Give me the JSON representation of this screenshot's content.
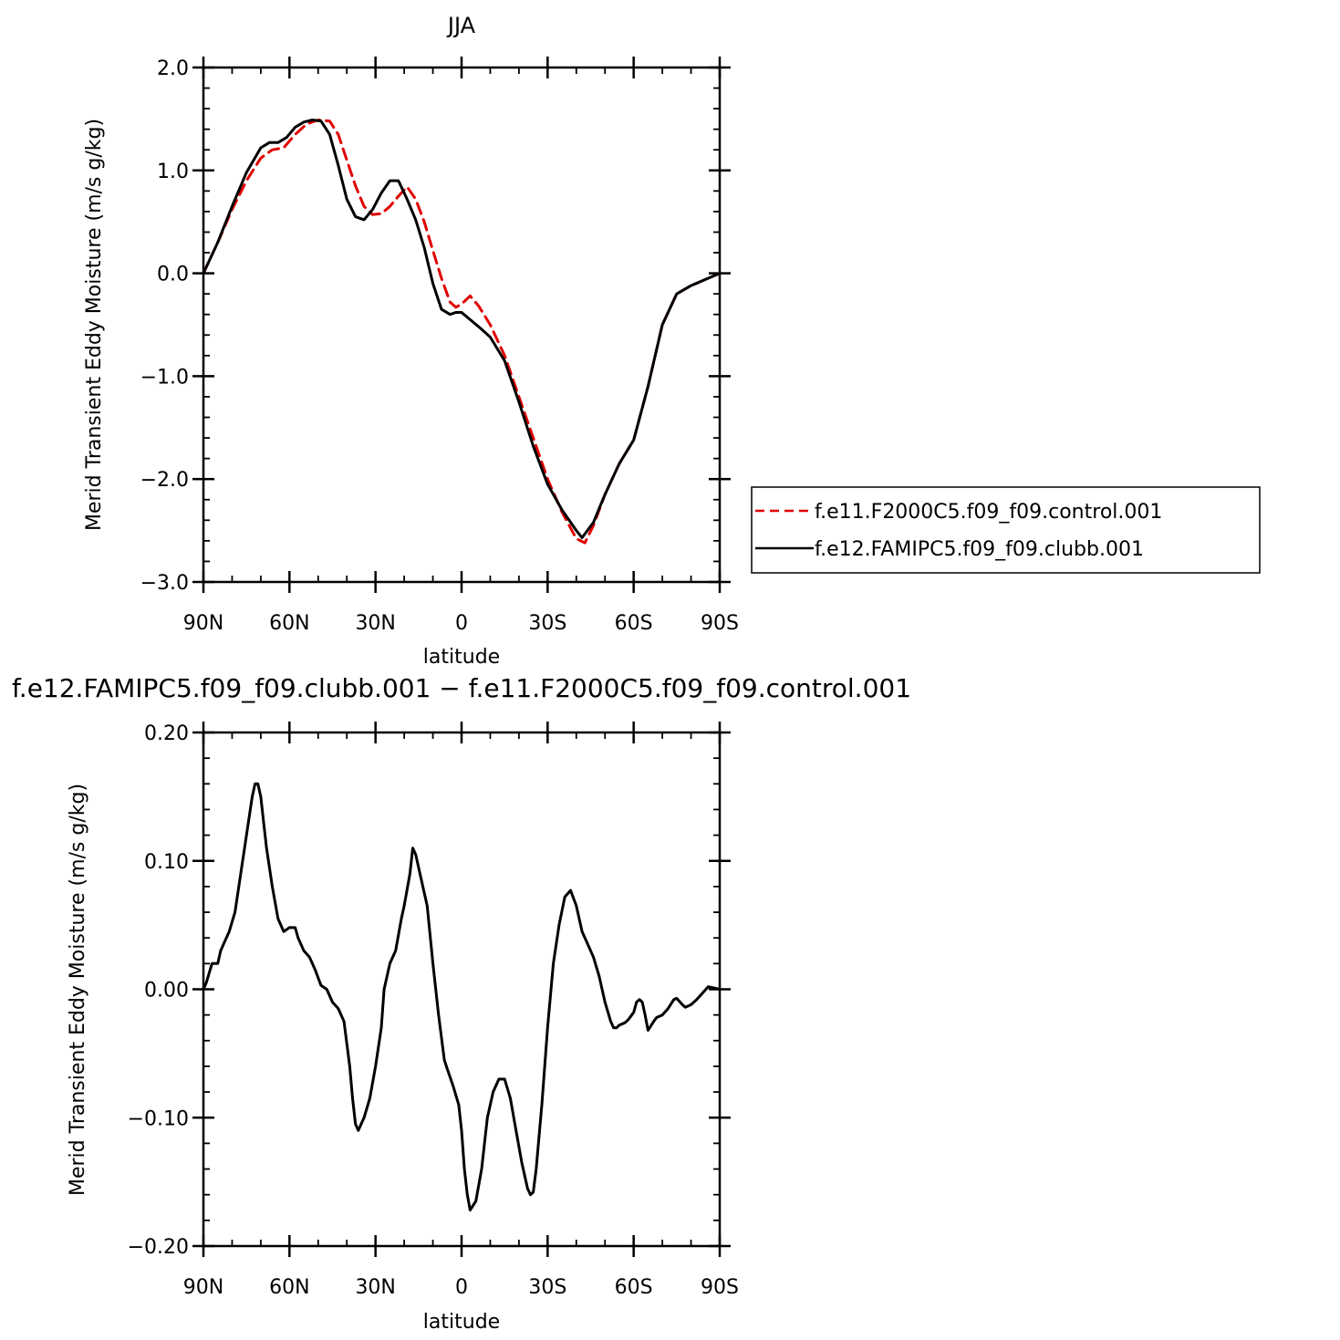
{
  "chart_data": [
    {
      "type": "line",
      "title": "JJA",
      "xlabel": "latitude",
      "ylabel": "Merid Transient Eddy Moisture (m/s g/kg)",
      "xlim": [
        90,
        -90
      ],
      "ylim": [
        -3.0,
        2.0
      ],
      "x_ticks": [
        {
          "value": 90,
          "label": "90N"
        },
        {
          "value": 60,
          "label": "60N"
        },
        {
          "value": 30,
          "label": "30N"
        },
        {
          "value": 0,
          "label": "0"
        },
        {
          "value": -30,
          "label": "30S"
        },
        {
          "value": -60,
          "label": "60S"
        },
        {
          "value": -90,
          "label": "90S"
        }
      ],
      "y_ticks": [
        {
          "value": 2.0,
          "label": "2.0"
        },
        {
          "value": 1.0,
          "label": "1.0"
        },
        {
          "value": 0.0,
          "label": "0.0"
        },
        {
          "value": -1.0,
          "label": "−1.0"
        },
        {
          "value": -2.0,
          "label": "−2.0"
        },
        {
          "value": -3.0,
          "label": "−3.0"
        }
      ],
      "legend_position": "right",
      "series": [
        {
          "name": "f.e11.F2000C5.f09_f09.control.001",
          "color": "#e00000",
          "dash": "dashed",
          "x": [
            90,
            85,
            80,
            75,
            70,
            66,
            62,
            58,
            54,
            50,
            46,
            43,
            40,
            37,
            34,
            31,
            28,
            25,
            22,
            19,
            16,
            13,
            10,
            7,
            4,
            2,
            0,
            -3,
            -6,
            -10,
            -15,
            -20,
            -25,
            -30,
            -35,
            -40,
            -43,
            -46,
            -50,
            -55,
            -60,
            -65,
            -70,
            -75,
            -80,
            -85,
            -90
          ],
          "y": [
            0.0,
            0.3,
            0.62,
            0.9,
            1.12,
            1.2,
            1.22,
            1.35,
            1.45,
            1.49,
            1.48,
            1.35,
            1.1,
            0.85,
            0.65,
            0.57,
            0.58,
            0.65,
            0.75,
            0.84,
            0.72,
            0.5,
            0.22,
            -0.05,
            -0.28,
            -0.33,
            -0.3,
            -0.22,
            -0.32,
            -0.5,
            -0.8,
            -1.2,
            -1.6,
            -2.0,
            -2.32,
            -2.58,
            -2.62,
            -2.45,
            -2.15,
            -1.85,
            -1.62,
            -1.1,
            -0.5,
            -0.2,
            -0.12,
            -0.06,
            0.0
          ]
        },
        {
          "name": "f.e12.FAMIPC5.f09_f09.clubb.001",
          "color": "#000000",
          "dash": "solid",
          "x": [
            90,
            85,
            80,
            75,
            70,
            67,
            64,
            61,
            58,
            55,
            52,
            49,
            46,
            43,
            40,
            37,
            34,
            31,
            28,
            25,
            22,
            19,
            16,
            13,
            10,
            7,
            4,
            2,
            0,
            -3,
            -6,
            -10,
            -15,
            -20,
            -25,
            -30,
            -35,
            -40,
            -42,
            -46,
            -50,
            -55,
            -60,
            -65,
            -70,
            -75,
            -80,
            -85,
            -90
          ],
          "y": [
            0.0,
            0.3,
            0.65,
            0.98,
            1.22,
            1.27,
            1.27,
            1.32,
            1.42,
            1.47,
            1.49,
            1.48,
            1.35,
            1.05,
            0.72,
            0.55,
            0.52,
            0.62,
            0.78,
            0.9,
            0.9,
            0.72,
            0.52,
            0.25,
            -0.1,
            -0.35,
            -0.4,
            -0.38,
            -0.38,
            -0.45,
            -0.52,
            -0.62,
            -0.85,
            -1.25,
            -1.68,
            -2.05,
            -2.3,
            -2.5,
            -2.57,
            -2.42,
            -2.15,
            -1.85,
            -1.62,
            -1.1,
            -0.5,
            -0.2,
            -0.12,
            -0.06,
            0.0
          ]
        }
      ]
    },
    {
      "type": "line",
      "title": "f.e12.FAMIPC5.f09_f09.clubb.001 − f.e11.F2000C5.f09_f09.control.001",
      "xlabel": "latitude",
      "ylabel": "Merid Transient Eddy Moisture (m/s g/kg)",
      "xlim": [
        90,
        -90
      ],
      "ylim": [
        -0.2,
        0.2
      ],
      "x_ticks": [
        {
          "value": 90,
          "label": "90N"
        },
        {
          "value": 60,
          "label": "60N"
        },
        {
          "value": 30,
          "label": "30N"
        },
        {
          "value": 0,
          "label": "0"
        },
        {
          "value": -30,
          "label": "30S"
        },
        {
          "value": -60,
          "label": "60S"
        },
        {
          "value": -90,
          "label": "90S"
        }
      ],
      "y_ticks": [
        {
          "value": 0.2,
          "label": "0.20"
        },
        {
          "value": 0.1,
          "label": "0.10"
        },
        {
          "value": 0.0,
          "label": "0.00"
        },
        {
          "value": -0.1,
          "label": "−0.10"
        },
        {
          "value": -0.2,
          "label": "−0.20"
        }
      ],
      "series": [
        {
          "color": "#000000",
          "dash": "solid",
          "x": [
            90,
            89,
            87,
            86,
            85,
            84,
            83,
            81,
            79,
            77,
            75,
            73,
            72,
            71,
            70,
            69,
            68,
            66,
            64,
            62,
            60,
            58,
            57,
            55,
            53,
            51,
            49,
            47,
            45,
            43,
            41,
            39,
            38,
            37,
            36,
            35,
            34,
            32,
            30,
            28,
            27,
            25,
            23,
            21,
            20,
            18,
            17,
            16,
            14,
            12,
            10,
            8,
            6,
            5,
            3,
            1,
            0,
            -1,
            -2,
            -3,
            -5,
            -7,
            -9,
            -11,
            -13,
            -15,
            -17,
            -19,
            -21,
            -23,
            -24,
            -25,
            -26,
            -28,
            -30,
            -32,
            -34,
            -36,
            -38,
            -40,
            -42,
            -44,
            -46,
            -48,
            -50,
            -52,
            -53,
            -54,
            -55,
            -57,
            -58,
            -60,
            -61,
            -62,
            -63,
            -64,
            -65,
            -67,
            -68,
            -70,
            -72,
            -74,
            -75,
            -77,
            -78,
            -80,
            -82,
            -84,
            -86,
            -88,
            -90
          ],
          "y": [
            0.0,
            0.005,
            0.02,
            0.02,
            0.02,
            0.03,
            0.035,
            0.045,
            0.06,
            0.09,
            0.12,
            0.15,
            0.16,
            0.16,
            0.15,
            0.13,
            0.11,
            0.08,
            0.055,
            0.045,
            0.048,
            0.048,
            0.04,
            0.03,
            0.025,
            0.015,
            0.003,
            0.0,
            -0.01,
            -0.015,
            -0.025,
            -0.06,
            -0.085,
            -0.105,
            -0.11,
            -0.105,
            -0.1,
            -0.085,
            -0.06,
            -0.03,
            0.0,
            0.02,
            0.03,
            0.055,
            0.065,
            0.09,
            0.11,
            0.105,
            0.085,
            0.065,
            0.02,
            -0.02,
            -0.055,
            -0.062,
            -0.075,
            -0.09,
            -0.11,
            -0.14,
            -0.16,
            -0.172,
            -0.165,
            -0.14,
            -0.1,
            -0.08,
            -0.07,
            -0.07,
            -0.085,
            -0.11,
            -0.135,
            -0.155,
            -0.16,
            -0.158,
            -0.14,
            -0.09,
            -0.03,
            0.02,
            0.05,
            0.072,
            0.077,
            0.065,
            0.045,
            0.035,
            0.025,
            0.01,
            -0.01,
            -0.025,
            -0.03,
            -0.03,
            -0.028,
            -0.026,
            -0.024,
            -0.018,
            -0.01,
            -0.008,
            -0.01,
            -0.02,
            -0.032,
            -0.025,
            -0.022,
            -0.02,
            -0.015,
            -0.008,
            -0.007,
            -0.012,
            -0.014,
            -0.012,
            -0.008,
            -0.003,
            0.002,
            0.001,
            0.0
          ]
        }
      ]
    }
  ]
}
